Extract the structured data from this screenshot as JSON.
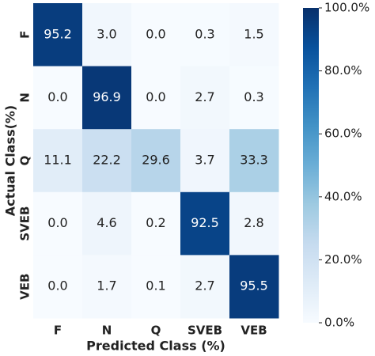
{
  "chart_data": {
    "type": "heatmap",
    "x_categories": [
      "F",
      "N",
      "Q",
      "SVEB",
      "VEB"
    ],
    "y_categories": [
      "F",
      "N",
      "Q",
      "SVEB",
      "VEB"
    ],
    "values": [
      [
        95.2,
        3.0,
        0.0,
        0.3,
        1.5
      ],
      [
        0.0,
        96.9,
        0.0,
        2.7,
        0.3
      ],
      [
        11.1,
        22.2,
        29.6,
        3.7,
        33.3
      ],
      [
        0.0,
        4.6,
        0.2,
        92.5,
        2.8
      ],
      [
        0.0,
        1.7,
        0.1,
        2.7,
        95.5
      ]
    ],
    "value_labels": [
      [
        "95.2",
        "3.0",
        "0.0",
        "0.3",
        "1.5"
      ],
      [
        "0.0",
        "96.9",
        "0.0",
        "2.7",
        "0.3"
      ],
      [
        "11.1",
        "22.2",
        "29.6",
        "3.7",
        "33.3"
      ],
      [
        "0.0",
        "4.6",
        "0.2",
        "92.5",
        "2.8"
      ],
      [
        "0.0",
        "1.7",
        "0.1",
        "2.7",
        "95.5"
      ]
    ],
    "xlabel": "Predicted Class (%)",
    "ylabel": "Actual Class(%)",
    "zlim": [
      0,
      100
    ],
    "zticks": [
      {
        "value": 0,
        "label": "0.0%"
      },
      {
        "value": 20,
        "label": "20.0%"
      },
      {
        "value": 40,
        "label": "40.0%"
      },
      {
        "value": 60,
        "label": "60.0%"
      },
      {
        "value": 80,
        "label": "80.0%"
      },
      {
        "value": 100,
        "label": "100.0%"
      }
    ],
    "colormap": [
      "#f7fbff",
      "#deebf7",
      "#c6dbef",
      "#9ecae1",
      "#6baed6",
      "#4292c6",
      "#2171b5",
      "#08519c",
      "#08306b"
    ]
  }
}
